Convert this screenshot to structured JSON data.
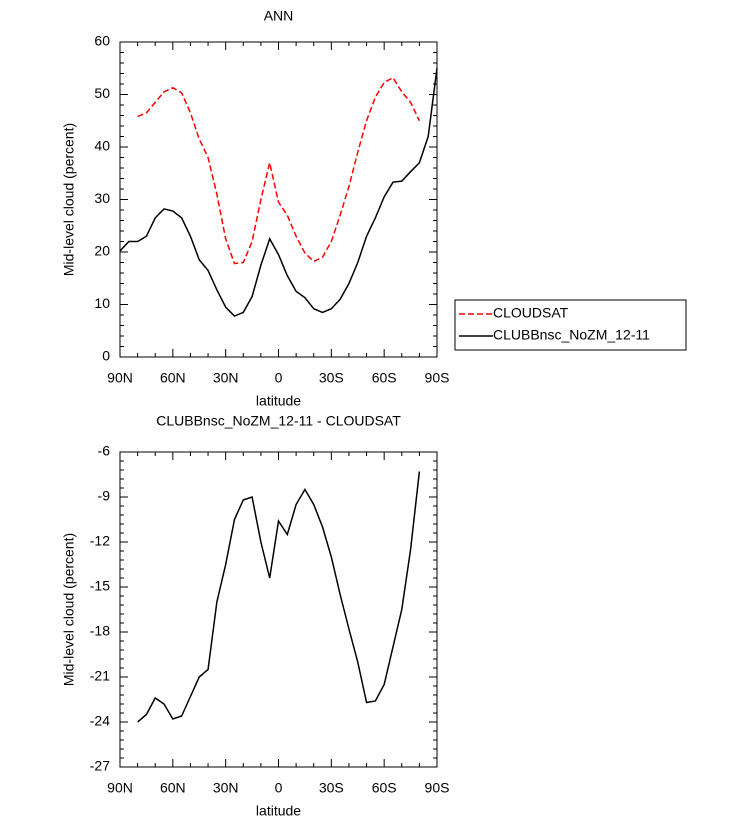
{
  "chart_data": [
    {
      "type": "line",
      "title": "ANN",
      "xlabel": "latitude",
      "ylabel": "Mid-level cloud (percent)",
      "x": [
        90,
        85,
        80,
        75,
        70,
        65,
        60,
        55,
        50,
        45,
        40,
        35,
        30,
        25,
        20,
        15,
        10,
        5,
        0,
        -5,
        -10,
        -15,
        -20,
        -25,
        -30,
        -35,
        -40,
        -45,
        -50,
        -55,
        -60,
        -65,
        -70,
        -75,
        -80,
        -85,
        -90
      ],
      "xlim": [
        90,
        -90
      ],
      "xticks": [
        {
          "value": 90,
          "label": "90N"
        },
        {
          "value": 60,
          "label": "60N"
        },
        {
          "value": 30,
          "label": "30N"
        },
        0,
        {
          "value": -30,
          "label": "30S"
        },
        {
          "value": -60,
          "label": "60S"
        },
        {
          "value": -90,
          "label": "90S"
        }
      ],
      "ylim": [
        0,
        60
      ],
      "yticks": [
        0,
        10,
        20,
        30,
        40,
        50,
        60
      ],
      "legend_position": "right",
      "series": [
        {
          "name": "CLOUDSAT",
          "color": "#ff0000",
          "dash": true,
          "values": [
            null,
            null,
            45.8,
            46.5,
            48.5,
            50.5,
            51.3,
            50.3,
            46.5,
            41.5,
            38,
            31,
            22.5,
            17.8,
            18,
            22,
            30,
            37,
            29.5,
            27,
            23,
            19.8,
            18.2,
            19,
            22,
            27,
            32.5,
            39,
            45,
            49.5,
            52.3,
            53.2,
            50.5,
            48.5,
            45,
            null,
            null
          ]
        },
        {
          "name": "CLUBBnsc_NoZM_12-11",
          "color": "#000000",
          "dash": false,
          "values": [
            20.2,
            22,
            22,
            23,
            26.5,
            28.2,
            27.8,
            26.5,
            23,
            18.5,
            16.5,
            12.8,
            9.5,
            7.8,
            8.5,
            11.5,
            17.5,
            22.5,
            19.5,
            15.5,
            12.5,
            11.3,
            9.2,
            8.5,
            9.2,
            11,
            14,
            18,
            23,
            26.5,
            30.5,
            33.3,
            33.5,
            35.3,
            37,
            42,
            55
          ]
        }
      ]
    },
    {
      "type": "line",
      "title": "CLUBBnsc_NoZM_12-11 - CLOUDSAT",
      "xlabel": "latitude",
      "ylabel": "Mid-level cloud (percent)",
      "x": [
        90,
        85,
        80,
        75,
        70,
        65,
        60,
        55,
        50,
        45,
        40,
        35,
        30,
        25,
        20,
        15,
        10,
        5,
        0,
        -5,
        -10,
        -15,
        -20,
        -25,
        -30,
        -35,
        -40,
        -45,
        -50,
        -55,
        -60,
        -65,
        -70,
        -75,
        -80,
        -85,
        -90
      ],
      "xlim": [
        90,
        -90
      ],
      "xticks": [
        {
          "value": 90,
          "label": "90N"
        },
        {
          "value": 60,
          "label": "60N"
        },
        {
          "value": 30,
          "label": "30N"
        },
        0,
        {
          "value": -30,
          "label": "30S"
        },
        {
          "value": -60,
          "label": "60S"
        },
        {
          "value": -90,
          "label": "90S"
        }
      ],
      "ylim": [
        -27,
        -6
      ],
      "yticks": [
        -27,
        -24,
        -21,
        -18,
        -15,
        -12,
        -9,
        -6
      ],
      "series": [
        {
          "color": "#000000",
          "dash": false,
          "values": [
            null,
            null,
            -24,
            -23.5,
            -22.4,
            -22.8,
            -23.8,
            -23.6,
            -22.3,
            -21.0,
            -20.5,
            -16,
            -13.5,
            -10.5,
            -9.2,
            -9.0,
            -12,
            -14.4,
            -10.6,
            -11.5,
            -9.5,
            -8.5,
            -9.5,
            -11,
            -13,
            -15.5,
            -17.8,
            -20,
            -22.7,
            -22.6,
            -21.5,
            -19,
            -16.5,
            -12.5,
            -7.3,
            null,
            null
          ]
        }
      ]
    }
  ]
}
